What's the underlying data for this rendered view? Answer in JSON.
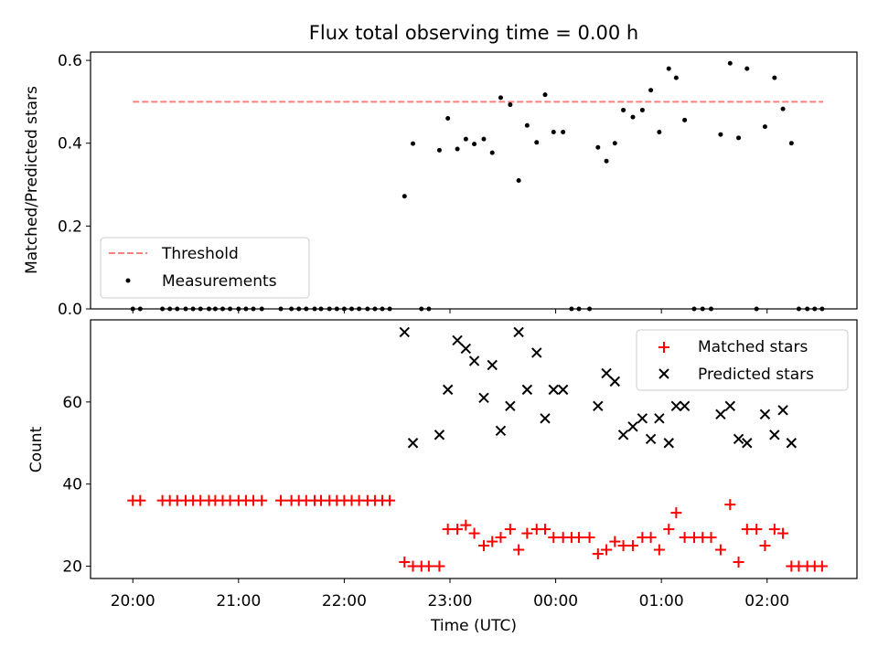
{
  "title": "Flux total observing time = 0.00 h",
  "chart_data": [
    {
      "type": "scatter",
      "panel": "top",
      "title": "Flux total observing time = 0.00 h",
      "ylabel": "Matched/Predicted stars",
      "xlabel": "",
      "xlim": [
        -0.4,
        6.85
      ],
      "ylim": [
        0,
        0.62
      ],
      "xticks": [
        0,
        1,
        2,
        3,
        4,
        5,
        6
      ],
      "yticks": [
        0.0,
        0.2,
        0.4,
        0.6
      ],
      "ytick_labels": [
        "0.0",
        "0.2",
        "0.4",
        "0.6"
      ],
      "legend": {
        "position": "lower-left",
        "entries": [
          "Threshold",
          "Measurements"
        ]
      },
      "threshold": {
        "name": "Threshold",
        "value": 0.5,
        "x_range": [
          0.0,
          6.53
        ],
        "color": "#ff7f7f"
      },
      "measurements": {
        "name": "Measurements",
        "color": "#000000",
        "x": [
          0.0,
          0.07,
          0.28,
          0.35,
          0.42,
          0.5,
          0.57,
          0.64,
          0.72,
          0.78,
          0.85,
          0.92,
          1.0,
          1.07,
          1.14,
          1.22,
          1.4,
          1.5,
          1.57,
          1.64,
          1.72,
          1.78,
          1.86,
          1.93,
          2.0,
          2.07,
          2.14,
          2.22,
          2.29,
          2.36,
          2.43,
          2.57,
          2.65,
          2.73,
          2.8,
          2.9,
          2.98,
          3.07,
          3.15,
          3.23,
          3.32,
          3.4,
          3.48,
          3.57,
          3.65,
          3.73,
          3.82,
          3.9,
          3.98,
          4.07,
          4.15,
          4.22,
          4.32,
          4.4,
          4.48,
          4.56,
          4.64,
          4.73,
          4.82,
          4.9,
          4.98,
          5.07,
          5.14,
          5.22,
          5.31,
          5.39,
          5.47,
          5.56,
          5.65,
          5.73,
          5.81,
          5.9,
          5.98,
          6.07,
          6.15,
          6.23,
          6.3,
          6.38,
          6.45,
          6.52
        ],
        "y": [
          0.0,
          0.0,
          0.0,
          0.0,
          0.0,
          0.0,
          0.0,
          0.0,
          0.0,
          0.0,
          0.0,
          0.0,
          0.0,
          0.0,
          0.0,
          0.0,
          0.0,
          0.0,
          0.0,
          0.0,
          0.0,
          0.0,
          0.0,
          0.0,
          0.0,
          0.0,
          0.0,
          0.0,
          0.0,
          0.0,
          0.0,
          0.272,
          0.399,
          0.0,
          0.0,
          0.383,
          0.46,
          0.386,
          0.41,
          0.398,
          0.41,
          0.377,
          0.51,
          0.493,
          0.31,
          0.443,
          0.402,
          0.517,
          0.427,
          0.427,
          0.0,
          0.0,
          0.0,
          0.39,
          0.357,
          0.4,
          0.48,
          0.463,
          0.48,
          0.528,
          0.427,
          0.58,
          0.558,
          0.456,
          0.0,
          0.0,
          0.0,
          0.421,
          0.593,
          0.413,
          0.58,
          0.0,
          0.44,
          0.558,
          0.483,
          0.4,
          0.0,
          0.0,
          0.0,
          0.0
        ]
      }
    },
    {
      "type": "scatter",
      "panel": "bottom",
      "ylabel": "Count",
      "xlabel": "Time (UTC)",
      "xlim": [
        -0.4,
        6.85
      ],
      "ylim": [
        17,
        80
      ],
      "xticks": [
        0,
        1,
        2,
        3,
        4,
        5,
        6
      ],
      "xtick_labels": [
        "20:00",
        "21:00",
        "22:00",
        "23:00",
        "00:00",
        "01:00",
        "02:00"
      ],
      "yticks": [
        20,
        40,
        60
      ],
      "ytick_labels": [
        "20",
        "40",
        "60"
      ],
      "legend": {
        "position": "top-right",
        "entries": [
          "Matched stars",
          "Predicted stars"
        ]
      },
      "series": [
        {
          "name": "Matched stars",
          "marker": "plus",
          "color": "#ff0000",
          "x": [
            0.0,
            0.07,
            0.28,
            0.35,
            0.42,
            0.5,
            0.57,
            0.64,
            0.72,
            0.78,
            0.85,
            0.92,
            1.0,
            1.07,
            1.14,
            1.22,
            1.4,
            1.5,
            1.57,
            1.64,
            1.72,
            1.78,
            1.86,
            1.93,
            2.0,
            2.07,
            2.14,
            2.22,
            2.29,
            2.36,
            2.43,
            2.57,
            2.65,
            2.73,
            2.8,
            2.9,
            2.98,
            3.07,
            3.15,
            3.23,
            3.32,
            3.4,
            3.48,
            3.57,
            3.65,
            3.73,
            3.82,
            3.9,
            3.98,
            4.07,
            4.15,
            4.22,
            4.32,
            4.4,
            4.48,
            4.56,
            4.64,
            4.73,
            4.82,
            4.9,
            4.98,
            5.07,
            5.14,
            5.22,
            5.31,
            5.39,
            5.47,
            5.56,
            5.65,
            5.73,
            5.81,
            5.9,
            5.98,
            6.07,
            6.15,
            6.23,
            6.3,
            6.38,
            6.45,
            6.52
          ],
          "y": [
            36,
            36,
            36,
            36,
            36,
            36,
            36,
            36,
            36,
            36,
            36,
            36,
            36,
            36,
            36,
            36,
            36,
            36,
            36,
            36,
            36,
            36,
            36,
            36,
            36,
            36,
            36,
            36,
            36,
            36,
            36,
            21,
            20,
            20,
            20,
            20,
            29,
            29,
            30,
            28,
            25,
            26,
            27,
            29,
            24,
            28,
            29,
            29,
            27,
            27,
            27,
            27,
            27,
            23,
            24,
            26,
            25,
            25,
            27,
            27,
            24,
            29,
            33,
            27,
            27,
            27,
            27,
            24,
            35,
            21,
            29,
            29,
            25,
            29,
            28,
            20,
            20,
            20,
            20,
            20
          ]
        },
        {
          "name": "Predicted stars",
          "marker": "x",
          "color": "#000000",
          "x": [
            2.57,
            2.65,
            2.9,
            2.98,
            3.07,
            3.15,
            3.23,
            3.32,
            3.4,
            3.48,
            3.57,
            3.65,
            3.73,
            3.82,
            3.9,
            3.98,
            4.07,
            4.4,
            4.48,
            4.56,
            4.64,
            4.73,
            4.82,
            4.9,
            4.98,
            5.07,
            5.14,
            5.22,
            5.56,
            5.65,
            5.73,
            5.81,
            5.98,
            6.07,
            6.15,
            6.23
          ],
          "y": [
            77,
            50,
            52,
            63,
            75,
            73,
            70,
            61,
            69,
            53,
            59,
            77,
            63,
            72,
            56,
            63,
            63,
            59,
            67,
            65,
            52,
            54,
            56,
            51,
            56,
            50,
            59,
            59,
            57,
            59,
            51,
            50,
            57,
            52,
            58,
            50
          ]
        }
      ]
    }
  ]
}
